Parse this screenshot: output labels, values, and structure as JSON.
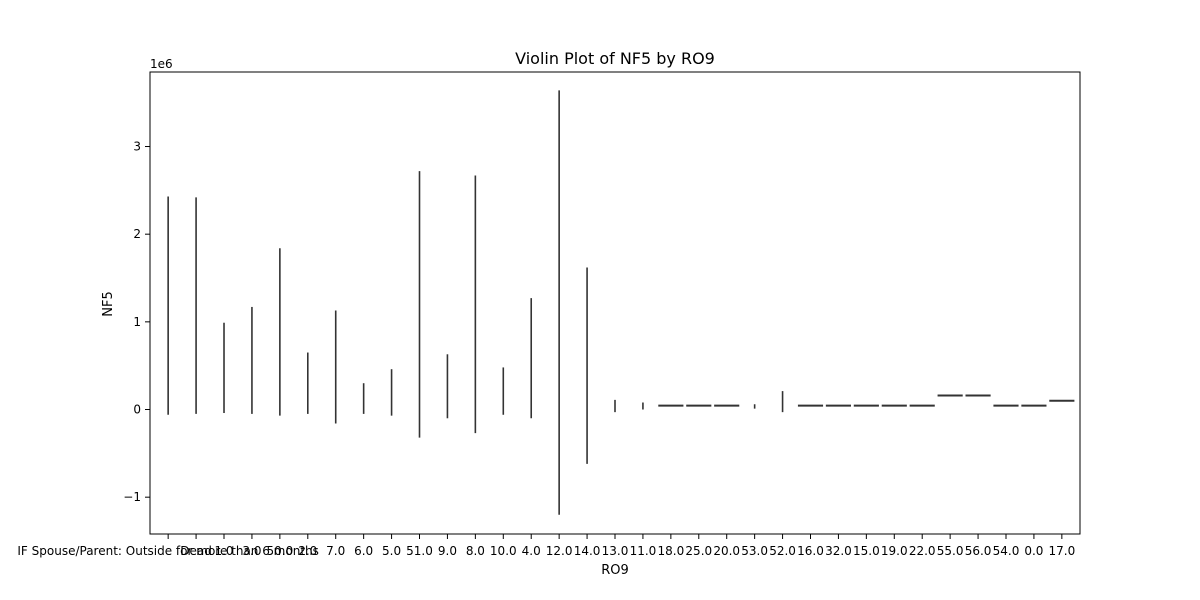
{
  "chart_data": {
    "type": "violin",
    "title": "Violin Plot of NF5 by RO9",
    "xlabel": "RO9",
    "ylabel": "NF5",
    "y_offset_text": "1e6",
    "ylim": [
      -1420000,
      3850000
    ],
    "yticks": [
      -1000000,
      0,
      1000000,
      2000000,
      3000000
    ],
    "ytick_labels": [
      "−1",
      "0",
      "1",
      "2",
      "3"
    ],
    "categories": [
      "IF Spouse/Parent: Outside for more than 6 months",
      "Dead",
      "1.0",
      "3.0",
      "50.0",
      "2.0",
      "7.0",
      "6.0",
      "5.0",
      "51.0",
      "9.0",
      "8.0",
      "10.0",
      "4.0",
      "12.0",
      "14.0",
      "13.0",
      "11.0",
      "18.0",
      "25.0",
      "20.0",
      "53.0",
      "52.0",
      "16.0",
      "32.0",
      "15.0",
      "19.0",
      "22.0",
      "55.0",
      "56.0",
      "54.0",
      "0.0",
      "17.0"
    ],
    "xtick_labels": [
      "IF Spouse/Parent: Outside for more than 6 months",
      "Dead",
      "1.0",
      "3.0",
      "50.0",
      "2.0",
      "7.0",
      "6.0",
      "5.0",
      "51.0",
      "9.0",
      "8.0",
      "10.0",
      "4.0",
      "12.0",
      "14.0",
      "13.0",
      "11.0",
      "18.0",
      "25.0",
      "20.0",
      "53.0",
      "52.0",
      "16.0",
      "32.0",
      "15.0",
      "19.0",
      "22.0",
      "55.0",
      "56.0",
      "54.0",
      "0.0",
      "17.0"
    ],
    "series": [
      {
        "values_min": -60000,
        "values_max": 2430000
      },
      {
        "values_min": -50000,
        "values_max": 2420000
      },
      {
        "values_min": -40000,
        "values_max": 990000
      },
      {
        "values_min": -50000,
        "values_max": 1170000
      },
      {
        "values_min": -70000,
        "values_max": 1840000
      },
      {
        "values_min": -50000,
        "values_max": 650000
      },
      {
        "values_min": -160000,
        "values_max": 1130000
      },
      {
        "values_min": -50000,
        "values_max": 300000
      },
      {
        "values_min": -70000,
        "values_max": 460000
      },
      {
        "values_min": -320000,
        "values_max": 2720000
      },
      {
        "values_min": -100000,
        "values_max": 630000
      },
      {
        "values_min": -270000,
        "values_max": 2670000
      },
      {
        "values_min": -60000,
        "values_max": 480000
      },
      {
        "values_min": -100000,
        "values_max": 1270000
      },
      {
        "values_min": -1200000,
        "values_max": 3640000
      },
      {
        "values_min": -620000,
        "values_max": 1620000
      },
      {
        "values_min": -30000,
        "values_max": 110000
      },
      {
        "values_min": 0,
        "values_max": 80000
      },
      {
        "values_min": 45000,
        "values_max": 45000,
        "value": 45000
      },
      {
        "values_min": 45000,
        "values_max": 45000,
        "value": 45000
      },
      {
        "values_min": 45000,
        "values_max": 45000,
        "value": 45000
      },
      {
        "values_min": 10000,
        "values_max": 60000
      },
      {
        "values_min": -30000,
        "values_max": 210000
      },
      {
        "values_min": 45000,
        "values_max": 45000,
        "value": 45000
      },
      {
        "values_min": 45000,
        "values_max": 45000,
        "value": 45000
      },
      {
        "values_min": 45000,
        "values_max": 45000,
        "value": 45000
      },
      {
        "values_min": 45000,
        "values_max": 45000,
        "value": 45000
      },
      {
        "values_min": 45000,
        "values_max": 45000,
        "value": 45000
      },
      {
        "values_min": 160000,
        "values_max": 160000,
        "value": 160000
      },
      {
        "values_min": 160000,
        "values_max": 160000,
        "value": 160000
      },
      {
        "values_min": 45000,
        "values_max": 45000,
        "value": 45000
      },
      {
        "values_min": 45000,
        "values_max": 45000,
        "value": 45000
      },
      {
        "values_min": 100000,
        "values_max": 100000,
        "value": 100000
      }
    ],
    "grid": false,
    "legend": false,
    "colors": {
      "line": "#333333",
      "axis": "#000000",
      "background": "#ffffff"
    }
  }
}
